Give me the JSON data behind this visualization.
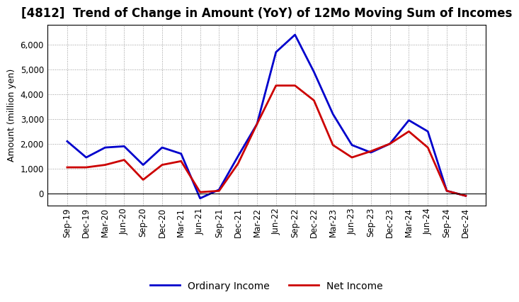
{
  "title": "[4812]  Trend of Change in Amount (YoY) of 12Mo Moving Sum of Incomes",
  "ylabel": "Amount (million yen)",
  "labels": [
    "Sep-19",
    "Dec-19",
    "Mar-20",
    "Jun-20",
    "Sep-20",
    "Dec-20",
    "Mar-21",
    "Jun-21",
    "Sep-21",
    "Dec-21",
    "Mar-22",
    "Jun-22",
    "Sep-22",
    "Dec-22",
    "Mar-23",
    "Jun-23",
    "Sep-23",
    "Dec-23",
    "Mar-24",
    "Jun-24",
    "Sep-24",
    "Dec-24"
  ],
  "ordinary_income": [
    2100,
    1450,
    1850,
    1900,
    1150,
    1850,
    1600,
    -200,
    150,
    1500,
    2800,
    5700,
    6400,
    4900,
    3200,
    1950,
    1650,
    2000,
    2950,
    2500,
    100,
    -100
  ],
  "net_income": [
    1050,
    1050,
    1150,
    1350,
    550,
    1150,
    1300,
    50,
    100,
    1200,
    2800,
    4350,
    4350,
    3750,
    1950,
    1450,
    1700,
    2000,
    2500,
    1850,
    100,
    -100
  ],
  "ordinary_income_color": "#0000cc",
  "net_income_color": "#cc0000",
  "line_width": 2.0,
  "background_color": "#ffffff",
  "plot_bg_color": "#ffffff",
  "grid_color": "#999999",
  "ylim": [
    -500,
    6800
  ],
  "yticks": [
    0,
    1000,
    2000,
    3000,
    4000,
    5000,
    6000
  ],
  "legend_labels": [
    "Ordinary Income",
    "Net Income"
  ],
  "title_fontsize": 12,
  "axis_fontsize": 9,
  "tick_fontsize": 8.5,
  "legend_fontsize": 10
}
